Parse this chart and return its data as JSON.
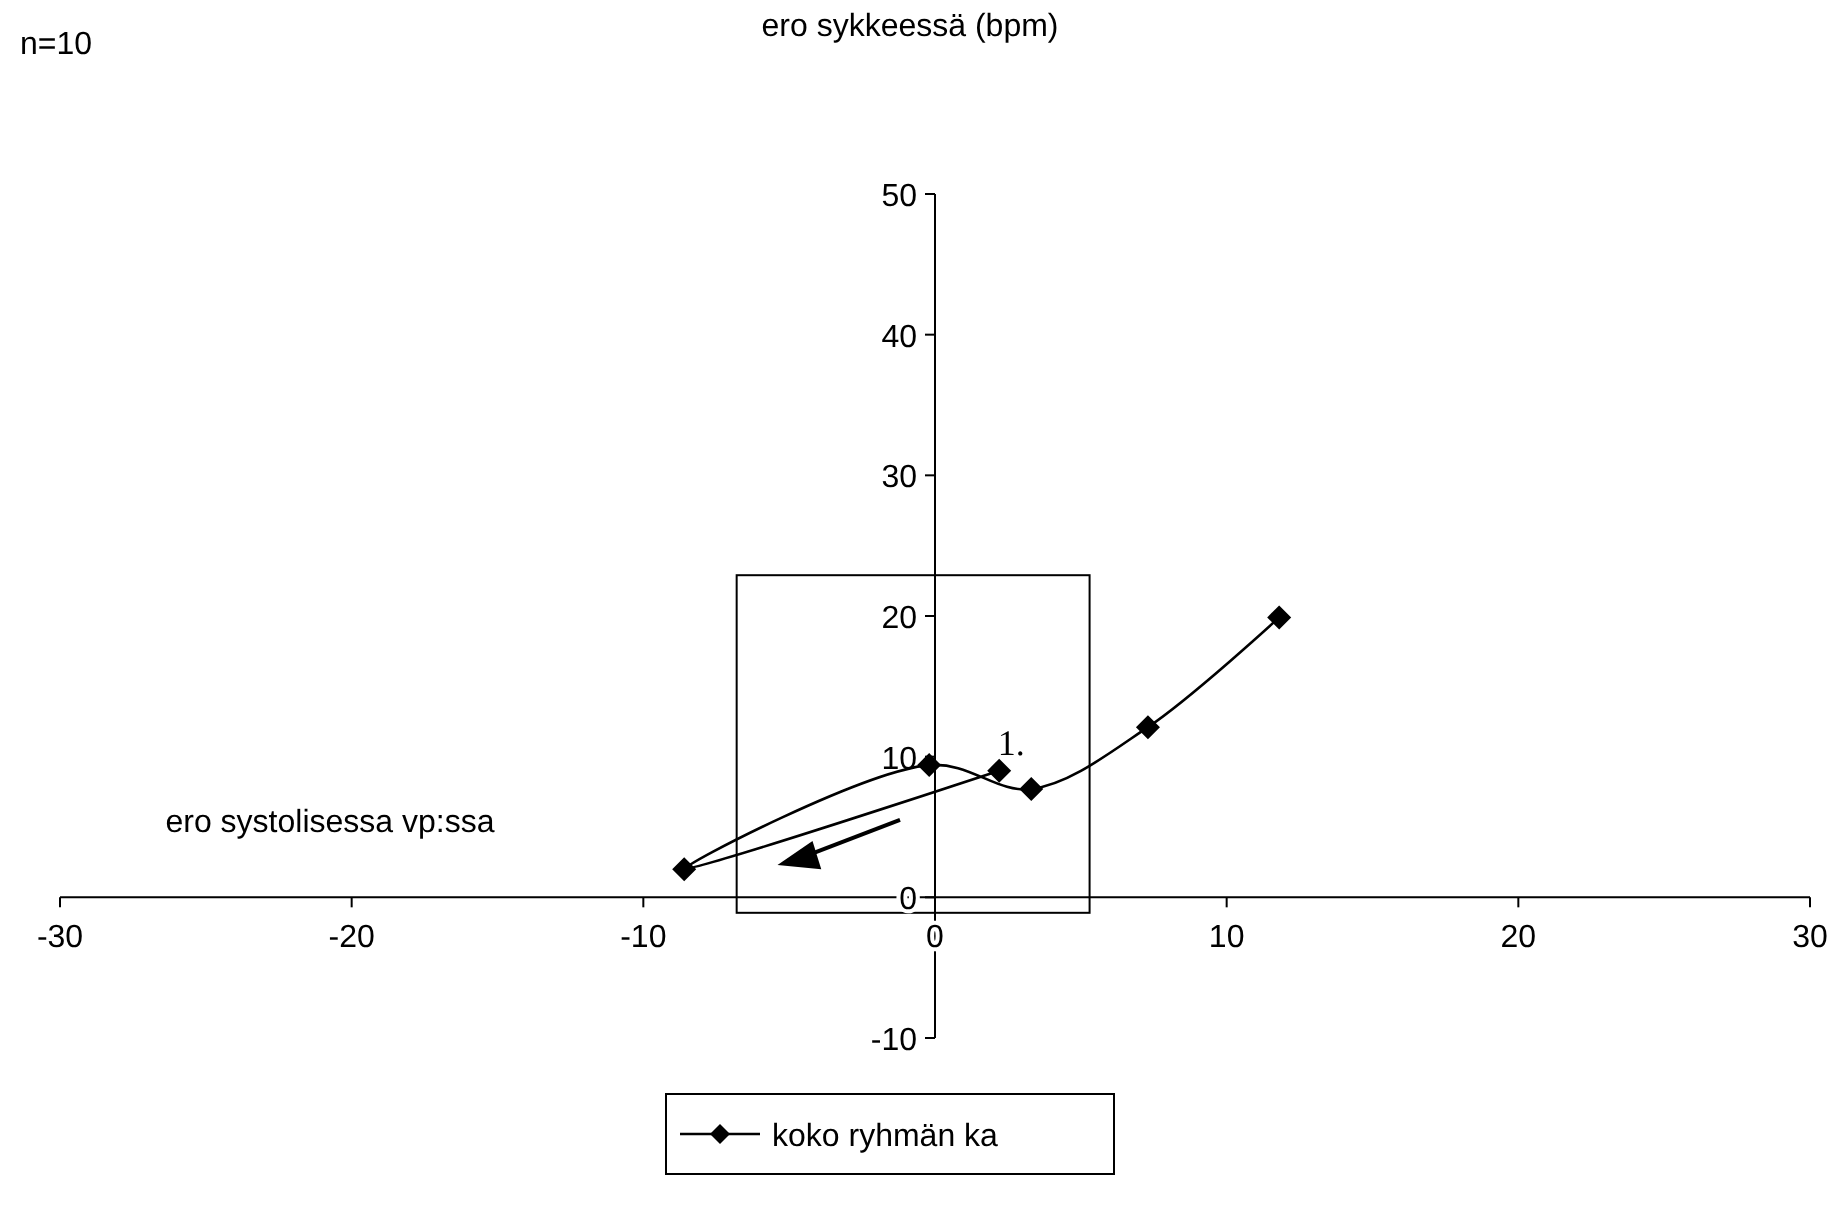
{
  "chart_data": {
    "type": "line",
    "xlabel": "ero systolisessa vp:ssa",
    "ylabel": "ero sykkeessä (bpm)",
    "annotations": [
      "n=10",
      {
        "text": "1.",
        "x": 2.2,
        "y": 9
      }
    ],
    "series": [
      {
        "name": "koko ryhmän ka",
        "color": "#000000",
        "x": [
          2.2,
          -8.6,
          -0.2,
          3.3,
          7.3,
          11.8
        ],
        "values": [
          9,
          2,
          9.4,
          7.7,
          12.1,
          19.9
        ]
      }
    ],
    "xlim": [
      -30,
      30
    ],
    "xticks": [
      -30,
      -20,
      -10,
      0,
      10,
      20,
      30
    ],
    "ylim": [
      -10,
      50
    ],
    "yticks": [
      -10,
      0,
      10,
      20,
      30,
      40,
      50
    ],
    "marker": "diamond",
    "line_style": "solid",
    "grid": false,
    "legend": "bottom"
  }
}
